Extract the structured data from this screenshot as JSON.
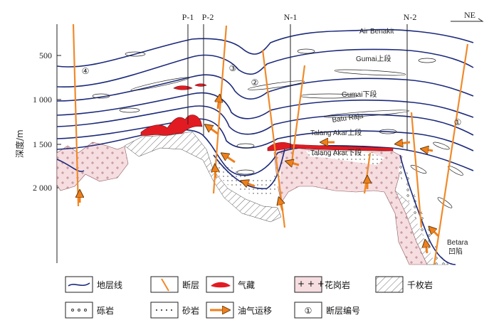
{
  "figure": {
    "y_axis_label": "深度/m",
    "depth_ticks": [
      "500",
      "1 000",
      "1 500",
      "2 000"
    ],
    "direction": "NE",
    "wells": [
      "P-1",
      "P-2",
      "N-1",
      "N-2"
    ],
    "fault_numbers": [
      "④",
      "③",
      "②",
      "①"
    ],
    "formations": {
      "air_benakit": "Air Benakit",
      "gumai_upper": "Gumai上段",
      "gumai_lower": "Gumai下段",
      "batu_raja": "Batu Raja",
      "talang_upper": "Talang Akar上段",
      "talang_lower": "Talang Akar下段"
    },
    "basin": {
      "name": "Betara",
      "suffix": "凹陷"
    }
  },
  "legend": {
    "items": [
      {
        "key": "stratum-line",
        "label": "地层线"
      },
      {
        "key": "fault",
        "label": "断层"
      },
      {
        "key": "gas-reservoir",
        "label": "气藏"
      },
      {
        "key": "granite",
        "label": "花岗岩"
      },
      {
        "key": "phyllite",
        "label": "千枚岩"
      },
      {
        "key": "conglomerate",
        "label": "砾岩"
      },
      {
        "key": "sandstone",
        "label": "砂岩"
      },
      {
        "key": "migration",
        "label": "油气运移"
      },
      {
        "key": "fault-number",
        "label": "断层编号"
      }
    ],
    "fault_number_symbol": "①",
    "granite_symbol": "+ + +"
  },
  "colors": {
    "stratum": "#1c2a7a",
    "fault": "#f08a2a",
    "gas": "#e21b23",
    "granite_fill": "#f6dde0",
    "arrow": "#ef7f1a"
  }
}
